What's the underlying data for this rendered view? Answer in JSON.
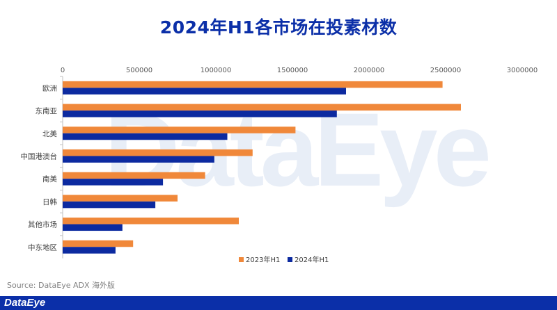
{
  "watermark_text": "DataEye",
  "source": "Source: DataEye ADX 海外版",
  "footer_logo": "DataEye",
  "colors": {
    "series_2023": "#f0883a",
    "series_2024": "#0c2aa0",
    "title": "#0b2fa8",
    "axis_text": "#595959"
  },
  "chart_data": {
    "type": "bar",
    "orientation": "horizontal",
    "title": "2024年H1各市场在投素材数",
    "categories": [
      "欧洲",
      "东南亚",
      "北美",
      "中国港澳台",
      "南美",
      "日韩",
      "其他市场",
      "中东地区"
    ],
    "series": [
      {
        "name": "2023年H1",
        "values": [
          2480000,
          2600000,
          1520000,
          1240000,
          930000,
          750000,
          1150000,
          460000
        ]
      },
      {
        "name": "2024年H1",
        "values": [
          1850000,
          1790000,
          1075000,
          990000,
          655000,
          605000,
          390000,
          345000
        ]
      }
    ],
    "xlim": [
      0,
      3000000
    ],
    "xticks": [
      "0",
      "500000",
      "1000000",
      "1500000",
      "2000000",
      "2500000",
      "3000000"
    ],
    "xtick_values": [
      0,
      500000,
      1000000,
      1500000,
      2000000,
      2500000,
      3000000
    ],
    "legend_position": "bottom",
    "grid": false
  }
}
